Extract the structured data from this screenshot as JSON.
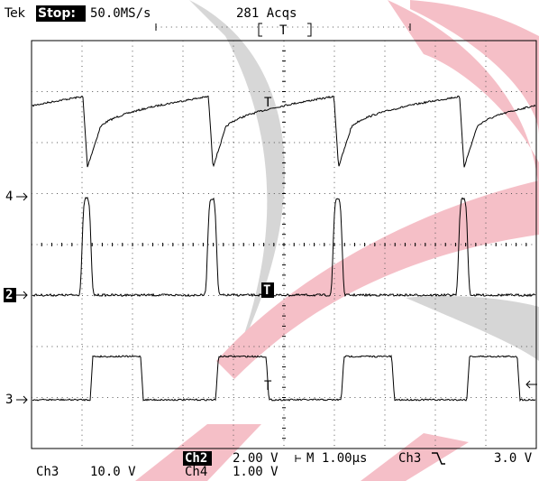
{
  "header": {
    "brand": "Tek",
    "status": "Stop:",
    "sample_rate": "50.0MS/s",
    "acquisitions": "281 Acqs",
    "trigger_position": "T"
  },
  "channel_markers": [
    "4",
    "2",
    "3"
  ],
  "waveform_labels": [
    "T",
    "T",
    "T"
  ],
  "footer": {
    "ch3_label": "Ch3",
    "ch3_scale": "10.0 V",
    "ch2_label": "Ch2",
    "ch2_scale": "2.00 V",
    "ch4_label": "Ch4",
    "ch4_scale": "1.00 V",
    "timebase": "M 1.00µs",
    "trigger_source": "Ch3",
    "trigger_level": "3.0 V"
  }
}
